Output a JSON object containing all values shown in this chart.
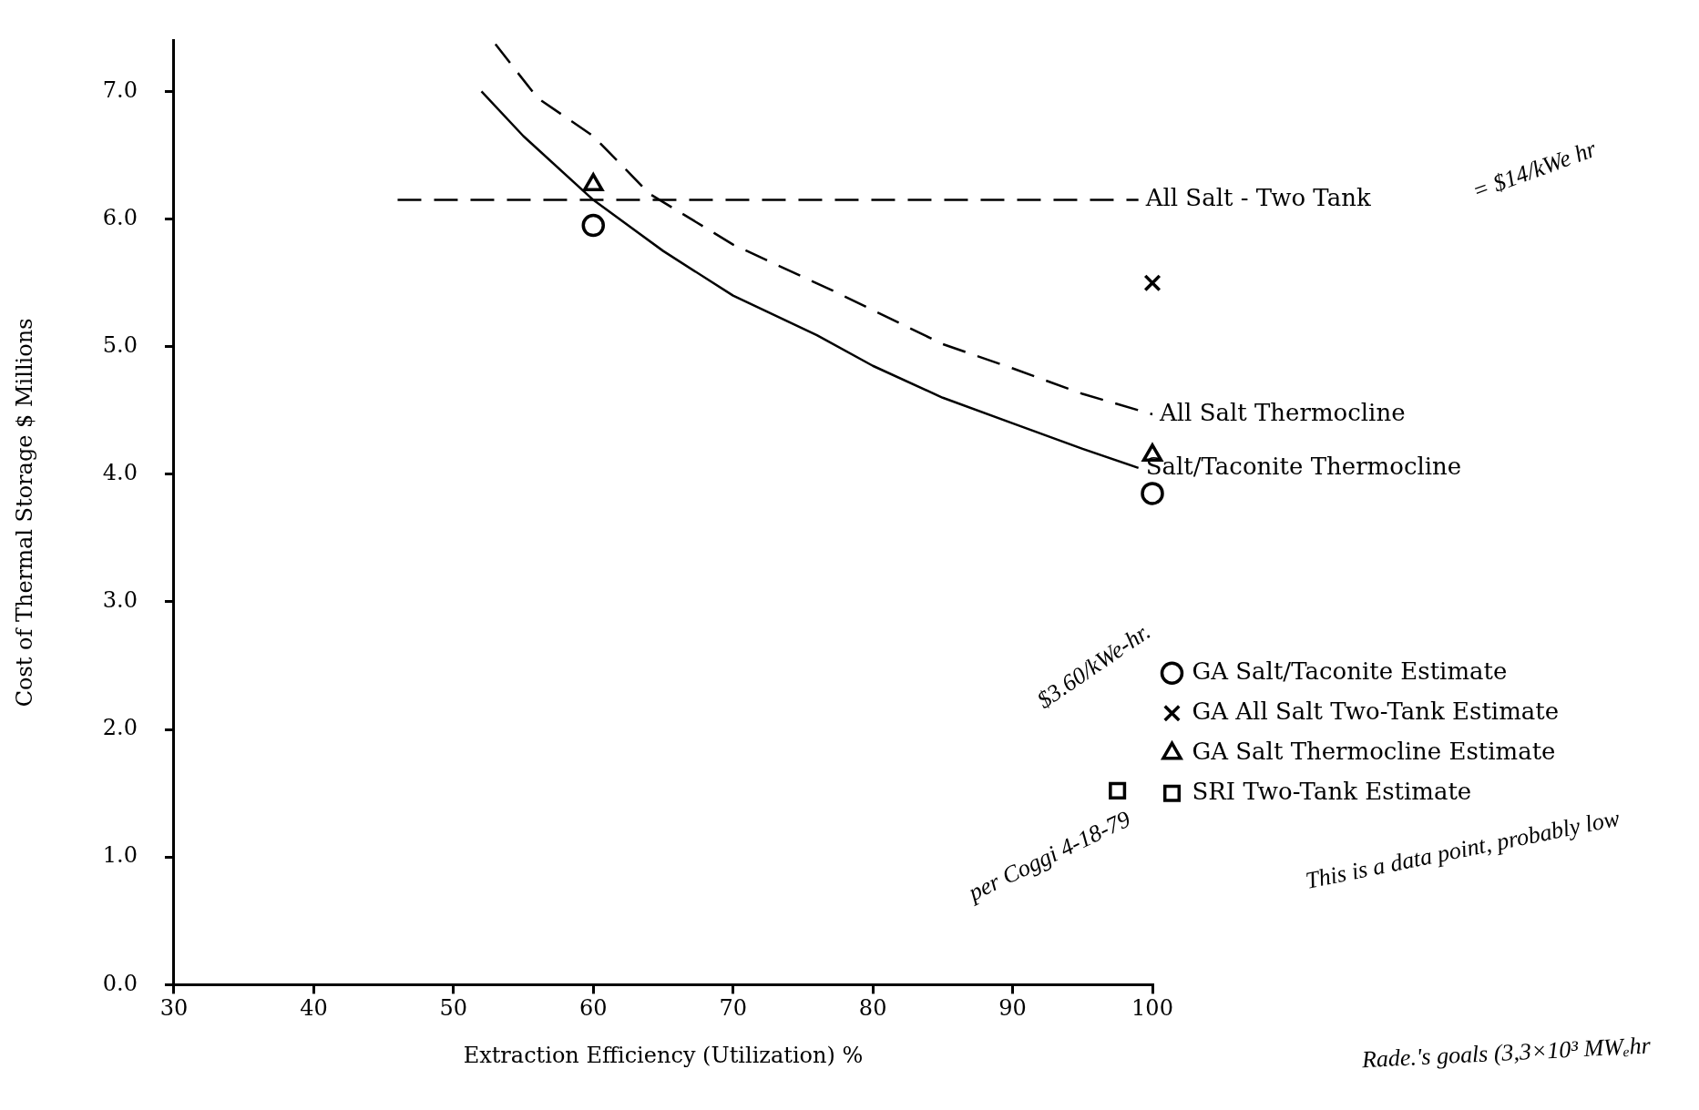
{
  "chart_data": {
    "type": "line",
    "xlabel": "Extraction Efficiency (Utilization) %",
    "ylabel": "Cost of Thermal Storage $ Millions",
    "xlim": [
      30,
      100
    ],
    "xticks": [
      30,
      40,
      50,
      60,
      70,
      80,
      90,
      100
    ],
    "ylim": [
      0,
      7.4
    ],
    "yticks": [
      {
        "value": 0,
        "label": "0.0"
      },
      {
        "value": 1,
        "label": "1.0"
      },
      {
        "value": 2,
        "label": "2.0"
      },
      {
        "value": 3,
        "label": "3.0"
      },
      {
        "value": 4,
        "label": "4.0"
      },
      {
        "value": 5,
        "label": "5.0"
      },
      {
        "value": 6,
        "label": "6.0"
      },
      {
        "value": 7,
        "label": "7.0"
      }
    ],
    "grid": false,
    "legend": "bottom right",
    "series": [
      {
        "name": "All Salt - Two Tank",
        "color": "#000000",
        "line_style": "dashed",
        "marker": "none",
        "x": [
          46,
          99
        ],
        "values": [
          6.15,
          6.15
        ]
      },
      {
        "name": "All Salt Thermocline",
        "color": "#000000",
        "line_style": "dashed",
        "marker": "none",
        "x": [
          53,
          56,
          60,
          64,
          70,
          77.5,
          85,
          90,
          95,
          100
        ],
        "values": [
          7.37,
          6.95,
          6.65,
          6.2,
          5.8,
          5.42,
          5.02,
          4.83,
          4.63,
          4.47
        ]
      },
      {
        "name": "Salt/Taconite Thermocline",
        "color": "#000000",
        "line_style": "solid",
        "marker": "none",
        "x": [
          52,
          55,
          60,
          65,
          70,
          76,
          80,
          85,
          90,
          95,
          99
        ],
        "values": [
          7.0,
          6.65,
          6.15,
          5.75,
          5.4,
          5.09,
          4.85,
          4.6,
          4.4,
          4.2,
          4.05
        ]
      },
      {
        "name": "GA Salt/Taconite Estimate",
        "type": "scatter",
        "color": "#000000",
        "marker": "circle",
        "x": [
          60,
          100
        ],
        "values": [
          5.95,
          3.85
        ]
      },
      {
        "name": "GA All Salt Two-Tank Estimate",
        "type": "scatter",
        "color": "#000000",
        "marker": "cross",
        "x": [
          100
        ],
        "values": [
          5.5
        ]
      },
      {
        "name": "GA Salt Thermocline Estimate",
        "type": "scatter",
        "color": "#000000",
        "marker": "triangle",
        "x": [
          60,
          100
        ],
        "values": [
          6.27,
          4.15
        ]
      },
      {
        "name": "SRI Two-Tank Estimate",
        "type": "scatter",
        "color": "#000000",
        "marker": "square",
        "x": [
          97.5
        ],
        "values": [
          1.52
        ]
      }
    ],
    "annotations": [
      "= $14/kWe hr",
      "$3.60/kWe-hr.",
      "per Coggi 4-18-79",
      "This is a data point, probably low",
      "Rade.'s goals (3,3×10³ MWₑhr"
    ]
  }
}
